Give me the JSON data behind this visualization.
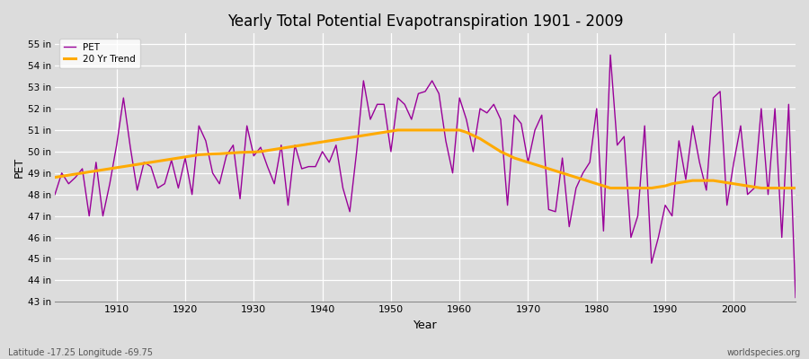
{
  "title": "Yearly Total Potential Evapotranspiration 1901 - 2009",
  "xlabel": "Year",
  "ylabel": "PET",
  "subtitle_left": "Latitude -17.25 Longitude -69.75",
  "subtitle_right": "worldspecies.org",
  "bg_color": "#dcdcdc",
  "plot_bg_color": "#dcdcdc",
  "pet_color": "#990099",
  "trend_color": "#ffaa00",
  "ylim": [
    43,
    55.5
  ],
  "ytick_vals": [
    43,
    44,
    45,
    46,
    47,
    48,
    49,
    50,
    51,
    52,
    53,
    54,
    55
  ],
  "xlim": [
    1901,
    2009
  ],
  "xticks": [
    1910,
    1920,
    1930,
    1940,
    1950,
    1960,
    1970,
    1980,
    1990,
    2000
  ],
  "years": [
    1901,
    1902,
    1903,
    1904,
    1905,
    1906,
    1907,
    1908,
    1909,
    1910,
    1911,
    1912,
    1913,
    1914,
    1915,
    1916,
    1917,
    1918,
    1919,
    1920,
    1921,
    1922,
    1923,
    1924,
    1925,
    1926,
    1927,
    1928,
    1929,
    1930,
    1931,
    1932,
    1933,
    1934,
    1935,
    1936,
    1937,
    1938,
    1939,
    1940,
    1941,
    1942,
    1943,
    1944,
    1945,
    1946,
    1947,
    1948,
    1949,
    1950,
    1951,
    1952,
    1953,
    1954,
    1955,
    1956,
    1957,
    1958,
    1959,
    1960,
    1961,
    1962,
    1963,
    1964,
    1965,
    1966,
    1967,
    1968,
    1969,
    1970,
    1971,
    1972,
    1973,
    1974,
    1975,
    1976,
    1977,
    1978,
    1979,
    1980,
    1981,
    1982,
    1983,
    1984,
    1985,
    1986,
    1987,
    1988,
    1989,
    1990,
    1991,
    1992,
    1993,
    1994,
    1995,
    1996,
    1997,
    1998,
    1999,
    2000,
    2001,
    2002,
    2003,
    2004,
    2005,
    2006,
    2007,
    2008,
    2009
  ],
  "pet": [
    48.0,
    49.0,
    48.5,
    48.8,
    49.2,
    47.0,
    49.5,
    47.0,
    48.5,
    50.3,
    52.5,
    50.2,
    48.2,
    49.5,
    49.3,
    48.3,
    48.5,
    49.6,
    48.3,
    49.7,
    48.0,
    51.2,
    50.5,
    49.0,
    48.5,
    49.8,
    50.3,
    47.8,
    51.2,
    49.8,
    50.2,
    49.3,
    48.5,
    50.3,
    47.5,
    50.3,
    49.2,
    49.3,
    49.3,
    50.0,
    49.5,
    50.3,
    48.3,
    47.2,
    50.0,
    53.3,
    51.5,
    52.2,
    52.2,
    50.0,
    52.5,
    52.2,
    51.5,
    52.7,
    52.8,
    53.3,
    52.7,
    50.5,
    49.0,
    52.5,
    51.5,
    50.0,
    52.0,
    51.8,
    52.2,
    51.5,
    47.5,
    51.7,
    51.3,
    49.5,
    51.0,
    51.7,
    47.3,
    47.2,
    49.7,
    46.5,
    48.3,
    49.0,
    49.5,
    52.0,
    46.3,
    54.5,
    50.3,
    50.7,
    46.0,
    47.0,
    51.2,
    44.8,
    46.0,
    47.5,
    47.0,
    50.5,
    48.7,
    51.2,
    49.5,
    48.2,
    52.5,
    52.8,
    47.5,
    49.5,
    51.2,
    48.0,
    48.3,
    52.0,
    48.0,
    52.0,
    46.0,
    52.2,
    43.2
  ],
  "trend_years": [
    1901,
    1902,
    1903,
    1904,
    1905,
    1906,
    1907,
    1908,
    1909,
    1910,
    1911,
    1912,
    1913,
    1914,
    1915,
    1916,
    1917,
    1918,
    1919,
    1920,
    1921,
    1922,
    1923,
    1924,
    1925,
    1926,
    1927,
    1928,
    1929,
    1930,
    1931,
    1932,
    1933,
    1934,
    1935,
    1936,
    1937,
    1938,
    1939,
    1940,
    1941,
    1942,
    1943,
    1944,
    1945,
    1946,
    1947,
    1948,
    1949,
    1950,
    1951,
    1952,
    1953,
    1954,
    1955,
    1956,
    1957,
    1958,
    1959,
    1960,
    1961,
    1962,
    1963,
    1964,
    1965,
    1966,
    1967,
    1968,
    1969,
    1970,
    1971,
    1972,
    1973,
    1974,
    1975,
    1976,
    1977,
    1978,
    1979,
    1980,
    1981,
    1982,
    1983,
    1984,
    1985,
    1986,
    1987,
    1988,
    1989,
    1990,
    1991,
    1992,
    1993,
    1994,
    1995,
    1996,
    1997,
    1998,
    1999,
    2000,
    2001,
    2002,
    2003,
    2004,
    2005,
    2006,
    2007,
    2008,
    2009
  ],
  "trend": [
    48.8,
    48.85,
    48.9,
    48.95,
    49.0,
    49.05,
    49.1,
    49.15,
    49.2,
    49.25,
    49.3,
    49.35,
    49.4,
    49.45,
    49.5,
    49.55,
    49.6,
    49.65,
    49.7,
    49.75,
    49.8,
    49.85,
    49.87,
    49.89,
    49.9,
    49.92,
    49.94,
    49.96,
    49.97,
    49.98,
    50.0,
    50.05,
    50.1,
    50.15,
    50.2,
    50.25,
    50.3,
    50.35,
    50.4,
    50.45,
    50.5,
    50.55,
    50.6,
    50.65,
    50.7,
    50.75,
    50.8,
    50.85,
    50.9,
    50.95,
    51.0,
    51.0,
    51.0,
    51.0,
    51.0,
    51.0,
    51.0,
    51.0,
    51.0,
    51.0,
    50.9,
    50.75,
    50.6,
    50.4,
    50.2,
    50.0,
    49.85,
    49.7,
    49.6,
    49.5,
    49.4,
    49.3,
    49.2,
    49.1,
    49.0,
    48.9,
    48.8,
    48.7,
    48.6,
    48.5,
    48.4,
    48.3,
    48.3,
    48.3,
    48.3,
    48.3,
    48.3,
    48.3,
    48.35,
    48.4,
    48.5,
    48.55,
    48.6,
    48.65,
    48.65,
    48.65,
    48.65,
    48.6,
    48.55,
    48.5,
    48.45,
    48.4,
    48.35,
    48.3,
    48.3,
    48.3,
    48.3,
    48.3,
    48.3
  ]
}
